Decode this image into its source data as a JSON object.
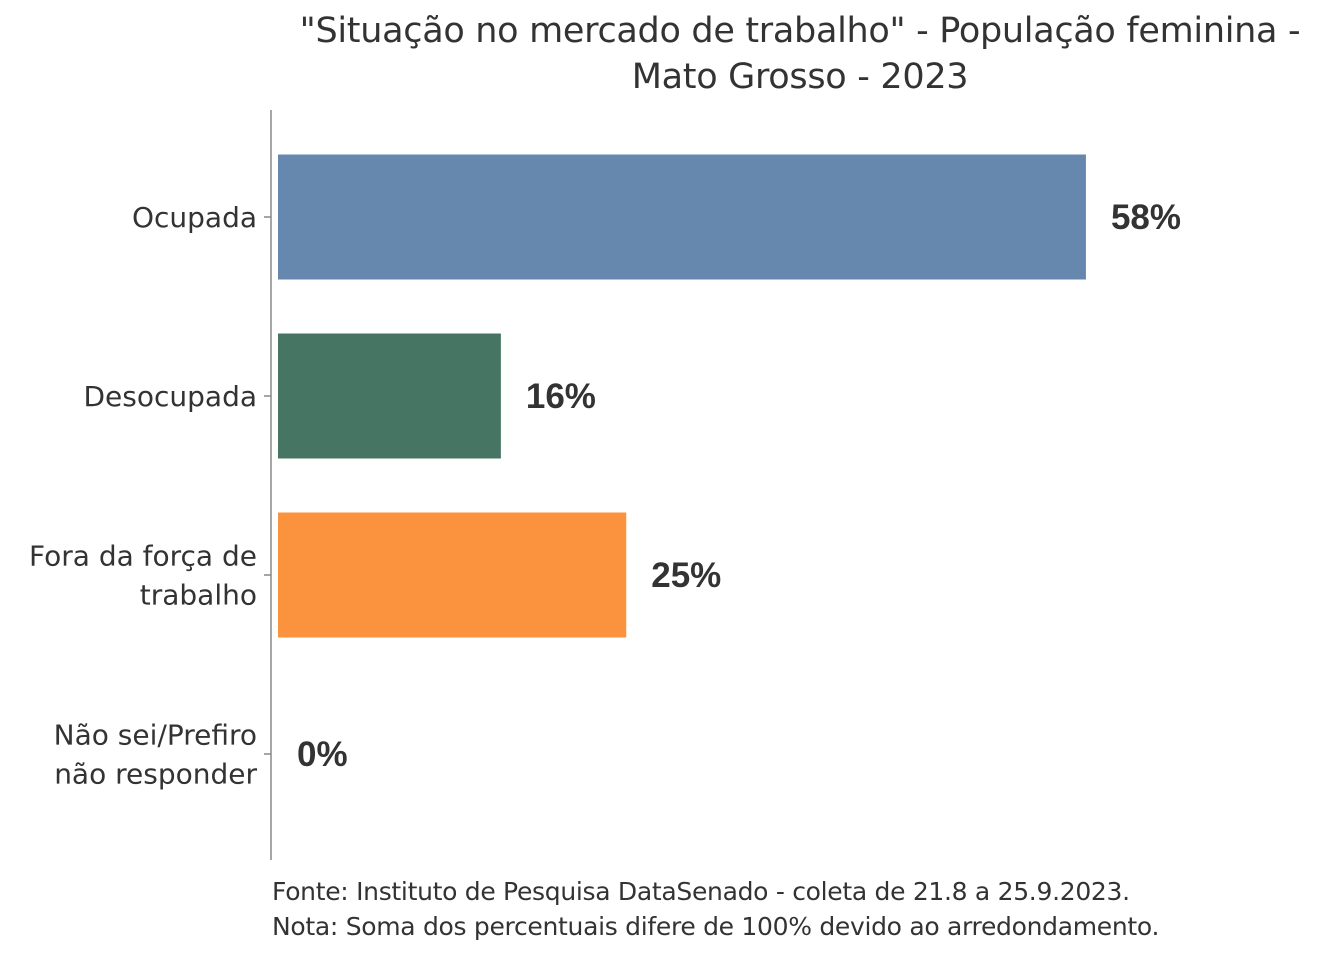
{
  "chart_data": {
    "type": "bar",
    "orientation": "horizontal",
    "title_line1": "\"Situação no mercado de trabalho\" - População feminina -",
    "title_line2": "Mato Grosso - 2023",
    "categories": [
      [
        "Ocupada"
      ],
      [
        "Desocupada"
      ],
      [
        "Fora da força de",
        "trabalho"
      ],
      [
        "Não sei/Prefiro",
        "não responder"
      ]
    ],
    "values": [
      58,
      16,
      25,
      0
    ],
    "labels": [
      "58%",
      "16%",
      "25%",
      "0%"
    ],
    "colors": [
      "#6688af",
      "#467564",
      "#fb923d",
      "#999999"
    ],
    "xlim": [
      0,
      60
    ],
    "grid": false,
    "xlabel": "",
    "ylabel": ""
  },
  "footer": {
    "source": "Fonte: Instituto de Pesquisa DataSenado - coleta de 21.8 a 25.9.2023.",
    "note": "Nota: Soma dos percentuais difere de 100% devido ao arredondamento."
  }
}
